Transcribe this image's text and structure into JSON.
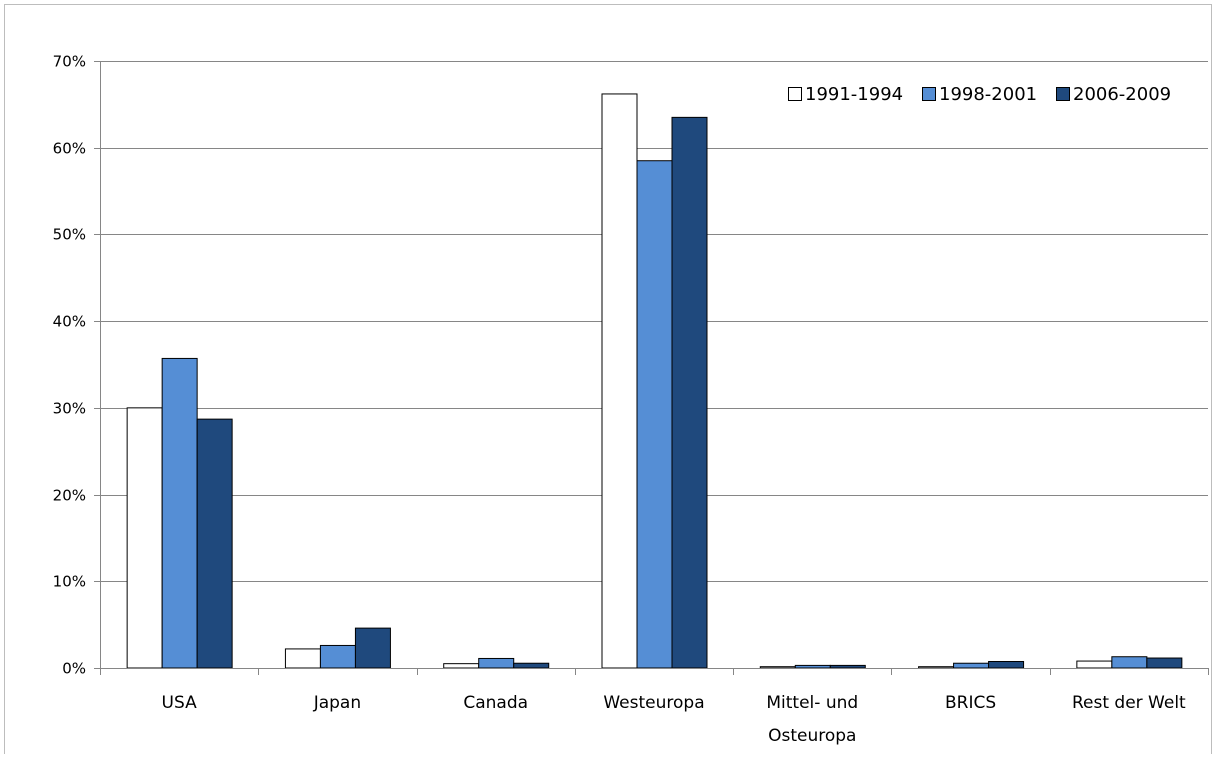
{
  "chart_data": {
    "type": "bar",
    "categories": [
      [
        "USA"
      ],
      [
        "Japan"
      ],
      [
        "Canada"
      ],
      [
        "Westeuropa"
      ],
      [
        "Mittel- und",
        "Osteuropa"
      ],
      [
        "BRICS"
      ],
      [
        "Rest der Welt"
      ]
    ],
    "series": [
      {
        "name": "1991-1994",
        "color": "#ffffff",
        "stroke": "#000000",
        "values": [
          30.0,
          2.2,
          0.5,
          66.2,
          0.15,
          0.15,
          0.8
        ]
      },
      {
        "name": "1998-2001",
        "color": "#558ed5",
        "stroke": "#000000",
        "values": [
          35.7,
          2.6,
          1.1,
          58.5,
          0.3,
          0.55,
          1.3
        ]
      },
      {
        "name": "2006-2009",
        "color": "#1f497d",
        "stroke": "#000000",
        "values": [
          28.7,
          4.6,
          0.55,
          63.5,
          0.3,
          0.75,
          1.15
        ]
      }
    ],
    "ylim": [
      0,
      70
    ],
    "yticks": [
      0,
      10,
      20,
      30,
      40,
      50,
      60,
      70
    ],
    "ytick_labels": [
      "0%",
      "10%",
      "20%",
      "30%",
      "40%",
      "50%",
      "60%",
      "70%"
    ],
    "grid": true,
    "legend_position": "top-right",
    "gridline_color": "#868686",
    "axis_color": "#868686"
  }
}
